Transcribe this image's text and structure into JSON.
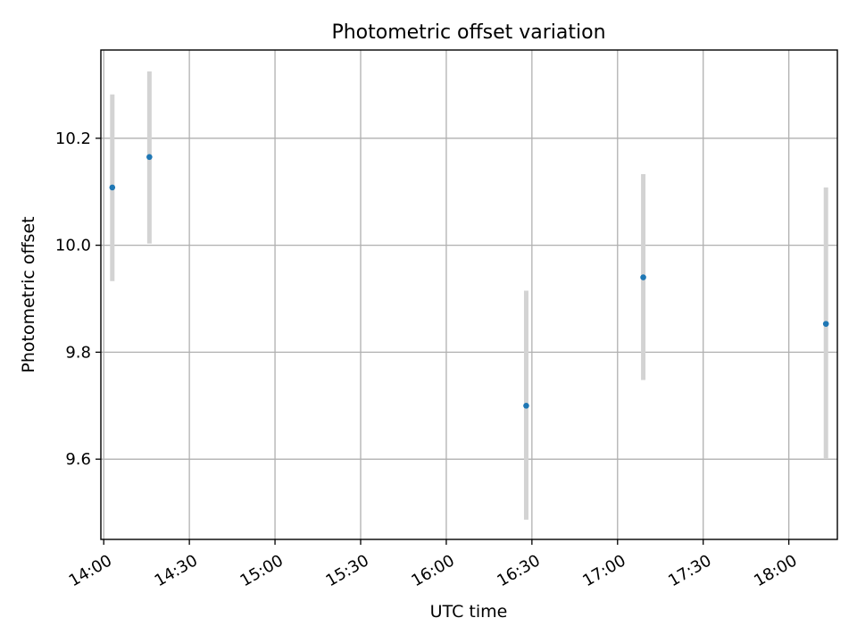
{
  "chart_data": {
    "type": "scatter",
    "title": "Photometric offset variation",
    "xlabel": "UTC time",
    "ylabel": "Photometric offset",
    "x_ticks": [
      "14:00",
      "14:30",
      "15:00",
      "15:30",
      "16:00",
      "16:30",
      "17:00",
      "17:30",
      "18:00"
    ],
    "y_ticks": [
      "9.6",
      "9.8",
      "10.0",
      "10.2"
    ],
    "xlim": [
      "13:59",
      "18:17"
    ],
    "ylim": [
      9.45,
      10.365
    ],
    "grid": true,
    "series": [
      {
        "color": "#1f77b4",
        "errorbar_color": "#d3d3d3",
        "points": [
          {
            "x": "14:03",
            "y": 10.108,
            "ylow": 9.933,
            "yhigh": 10.282
          },
          {
            "x": "14:16",
            "y": 10.165,
            "ylow": 10.003,
            "yhigh": 10.325
          },
          {
            "x": "16:28",
            "y": 9.7,
            "ylow": 9.487,
            "yhigh": 9.915
          },
          {
            "x": "17:09",
            "y": 9.94,
            "ylow": 9.748,
            "yhigh": 10.133
          },
          {
            "x": "18:13",
            "y": 9.853,
            "ylow": 9.6,
            "yhigh": 10.108
          }
        ]
      }
    ]
  }
}
